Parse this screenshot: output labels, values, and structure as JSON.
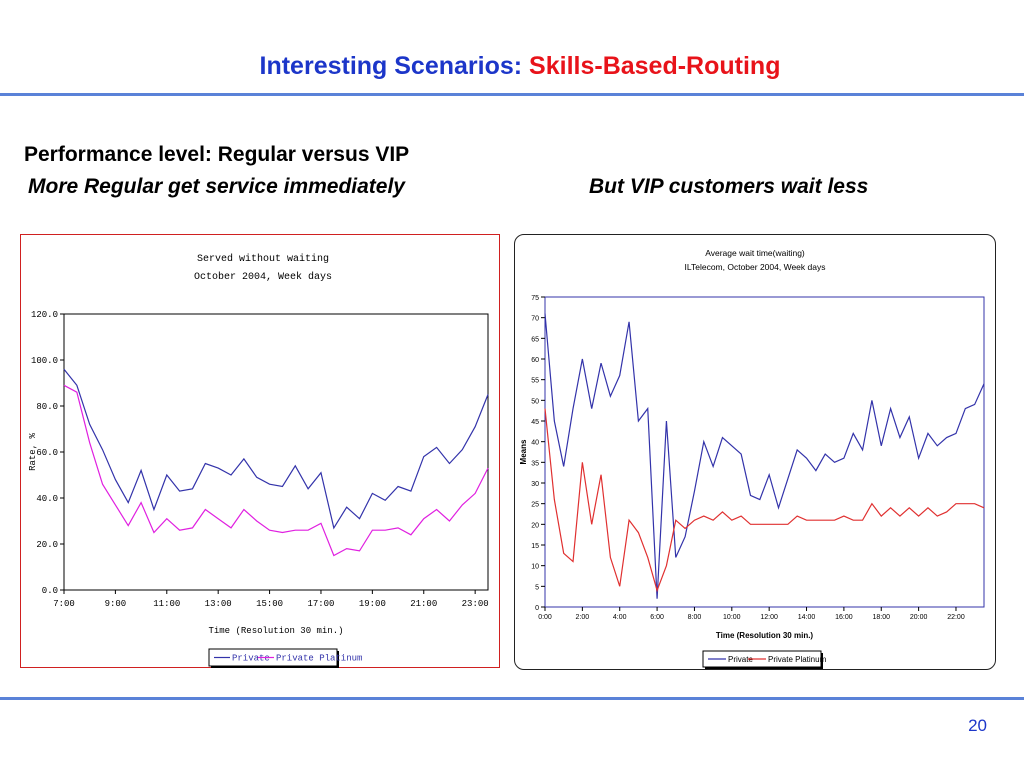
{
  "slide": {
    "title_blue": "Interesting Scenarios:",
    "title_red": "Skills-Based-Routing",
    "heading": "Performance level: Regular versus VIP",
    "subheading_left": "More Regular get service immediately",
    "subheading_right": "But VIP customers wait less",
    "page_number": "20"
  },
  "colors": {
    "accent_blue": "#1c36c9",
    "accent_red": "#e8131a",
    "rule": "#5a82d8",
    "series_private": "#3333aa",
    "series_platinum_left": "#e020e0",
    "series_platinum_right": "#e03030"
  },
  "chart_data": [
    {
      "type": "line",
      "title": "Served without waiting",
      "subtitle": "October 2004, Week days",
      "xlabel": "Time (Resolution 30 min.)",
      "ylabel": "Rate, %",
      "ylim": [
        0,
        120
      ],
      "yticks": [
        "0.0",
        "20.0",
        "40.0",
        "60.0",
        "80.0",
        "100.0",
        "120.0"
      ],
      "xlim": [
        7,
        23.5
      ],
      "xticks": [
        "7:00",
        "9:00",
        "11:00",
        "13:00",
        "15:00",
        "17:00",
        "19:00",
        "21:00",
        "23:00"
      ],
      "xtick_values": [
        7,
        9,
        11,
        13,
        15,
        17,
        19,
        21,
        23
      ],
      "legend_position": "bottom",
      "x": [
        7,
        7.5,
        8,
        8.5,
        9,
        9.5,
        10,
        10.5,
        11,
        11.5,
        12,
        12.5,
        13,
        13.5,
        14,
        14.5,
        15,
        15.5,
        16,
        16.5,
        17,
        17.5,
        18,
        18.5,
        19,
        19.5,
        20,
        20.5,
        21,
        21.5,
        22,
        22.5,
        23,
        23.5
      ],
      "series": [
        {
          "name": "Private",
          "values": [
            96,
            89,
            72,
            61,
            48,
            38,
            52,
            35,
            50,
            43,
            44,
            55,
            53,
            50,
            57,
            49,
            46,
            45,
            54,
            44,
            51,
            27,
            36,
            31,
            42,
            39,
            45,
            43,
            58,
            62,
            55,
            61,
            71,
            85
          ]
        },
        {
          "name": "Private Platinum",
          "values": [
            89,
            86,
            64,
            46,
            37,
            28,
            38,
            25,
            31,
            26,
            27,
            35,
            31,
            27,
            35,
            30,
            26,
            25,
            26,
            26,
            29,
            15,
            18,
            17,
            26,
            26,
            27,
            24,
            31,
            35,
            30,
            37,
            42,
            53
          ]
        }
      ]
    },
    {
      "type": "line",
      "title": "Average wait time(waiting)",
      "subtitle": "ILTelecom, October 2004, Week days",
      "xlabel": "Time (Resolution 30 min.)",
      "ylabel": "Means",
      "ylim": [
        0,
        75
      ],
      "yticks": [
        "0",
        "5",
        "10",
        "15",
        "20",
        "25",
        "30",
        "35",
        "40",
        "45",
        "50",
        "55",
        "60",
        "65",
        "70",
        "75"
      ],
      "xlim": [
        0,
        23.5
      ],
      "xticks": [
        "0:00",
        "2:00",
        "4:00",
        "6:00",
        "8:00",
        "10:00",
        "12:00",
        "14:00",
        "16:00",
        "18:00",
        "20:00",
        "22:00"
      ],
      "xtick_values": [
        0,
        2,
        4,
        6,
        8,
        10,
        12,
        14,
        16,
        18,
        20,
        22
      ],
      "legend_position": "bottom",
      "x": [
        0,
        0.5,
        1,
        1.5,
        2,
        2.5,
        3,
        3.5,
        4,
        4.5,
        5,
        5.5,
        6,
        6.5,
        7,
        7.5,
        8,
        8.5,
        9,
        9.5,
        10,
        10.5,
        11,
        11.5,
        12,
        12.5,
        13,
        13.5,
        14,
        14.5,
        15,
        15.5,
        16,
        16.5,
        17,
        17.5,
        18,
        18.5,
        19,
        19.5,
        20,
        20.5,
        21,
        21.5,
        22,
        22.5,
        23,
        23.5
      ],
      "series": [
        {
          "name": "Private",
          "values": [
            71,
            45,
            34,
            48,
            60,
            48,
            59,
            51,
            56,
            69,
            45,
            48,
            2,
            45,
            12,
            17,
            28,
            40,
            34,
            41,
            39,
            37,
            27,
            26,
            32,
            24,
            31,
            38,
            36,
            33,
            37,
            35,
            36,
            42,
            38,
            50,
            39,
            48,
            41,
            46,
            36,
            42,
            39,
            41,
            42,
            48,
            49,
            54
          ]
        },
        {
          "name": "Private Platinum",
          "values": [
            48,
            26,
            13,
            11,
            35,
            20,
            32,
            12,
            5,
            21,
            18,
            12,
            4,
            10,
            21,
            19,
            21,
            22,
            21,
            23,
            21,
            22,
            20,
            20,
            20,
            20,
            20,
            22,
            21,
            21,
            21,
            21,
            22,
            21,
            21,
            25,
            22,
            24,
            22,
            24,
            22,
            24,
            22,
            23,
            25,
            25,
            25,
            24
          ]
        }
      ]
    }
  ]
}
